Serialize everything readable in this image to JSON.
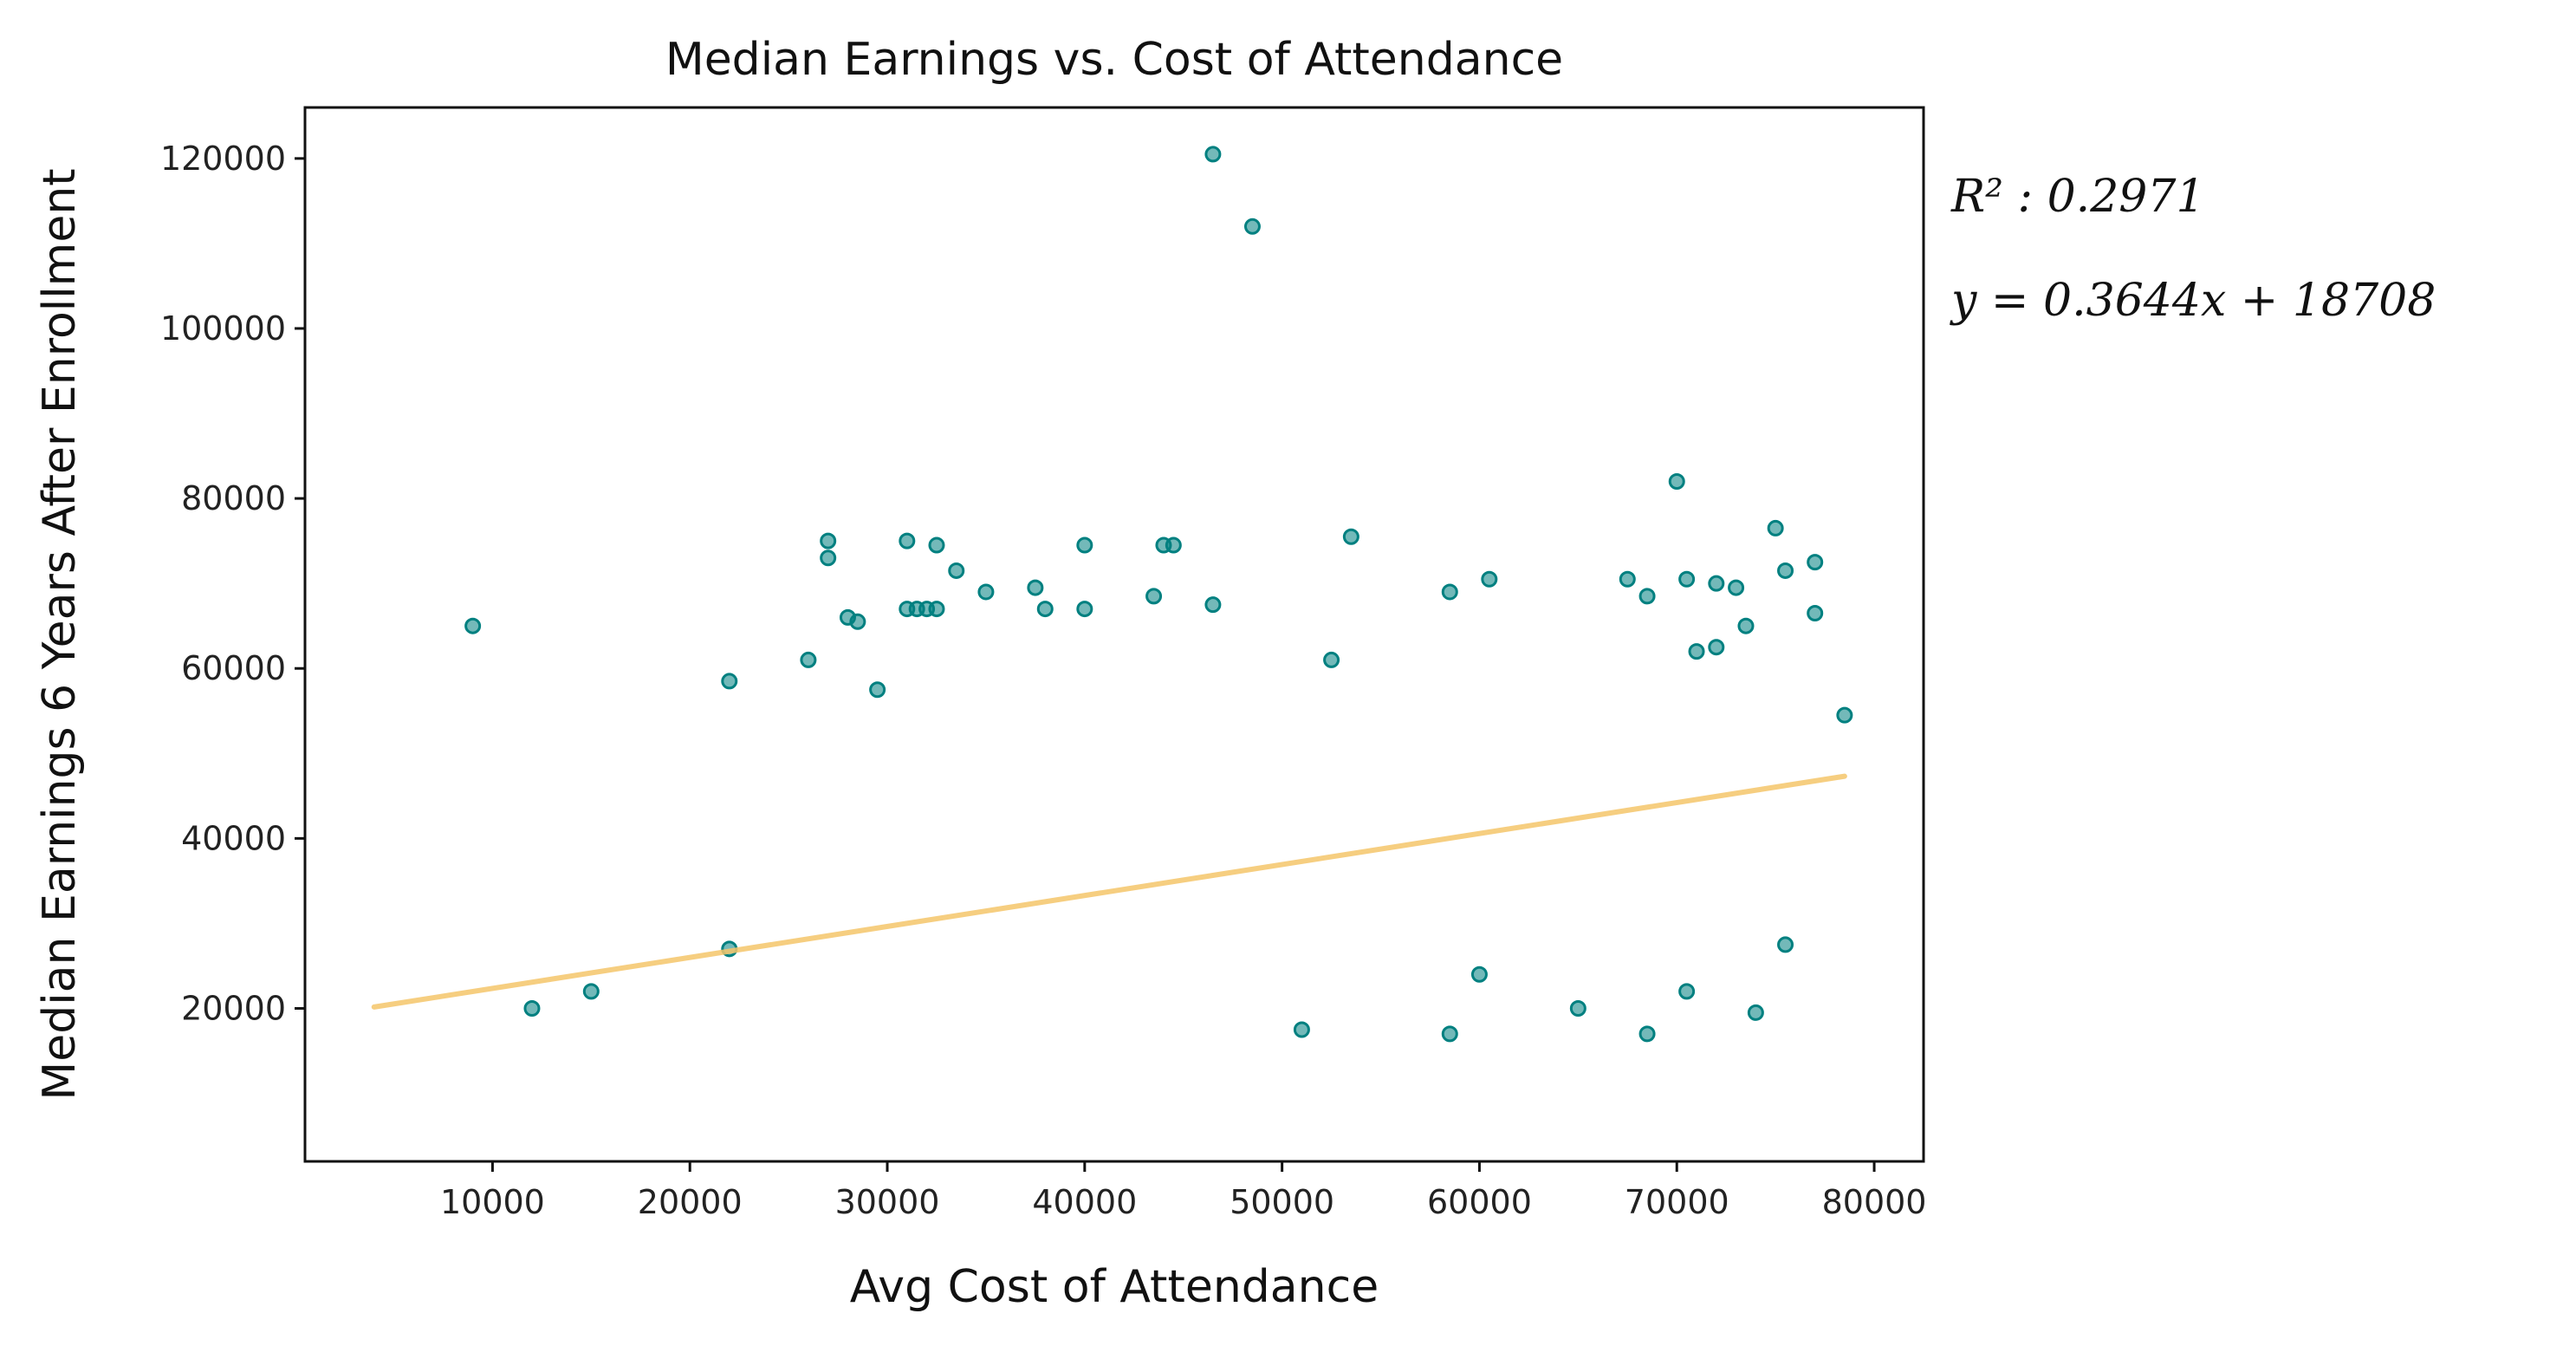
{
  "chart_data": {
    "type": "scatter",
    "title": "Median Earnings vs. Cost of Attendance",
    "xlabel": "Avg Cost of Attendance",
    "ylabel": "Median Earnings 6 Years After Enrollment",
    "xlim": [
      500,
      82500
    ],
    "ylim": [
      2000,
      126000
    ],
    "xticks": [
      10000,
      20000,
      30000,
      40000,
      50000,
      60000,
      70000,
      80000
    ],
    "yticks": [
      20000,
      40000,
      60000,
      80000,
      100000,
      120000
    ],
    "grid": false,
    "point_color": "#008080",
    "line_color": "#F5C66B",
    "annotations": {
      "r2_label": "R² : 0.2971",
      "equation_label": "y = 0.3644x + 18708"
    },
    "regression": {
      "slope": 0.3644,
      "intercept": 18708,
      "x_range": [
        4000,
        78500
      ]
    },
    "series": [
      {
        "values": [
          [
            46500,
            120500
          ],
          [
            48500,
            112000
          ],
          [
            9000,
            65000
          ],
          [
            27000,
            75000
          ],
          [
            31000,
            75000
          ],
          [
            32500,
            74500
          ],
          [
            40000,
            74500
          ],
          [
            44000,
            74500
          ],
          [
            44500,
            74500
          ],
          [
            27000,
            73000
          ],
          [
            33500,
            71500
          ],
          [
            35000,
            69000
          ],
          [
            37500,
            69500
          ],
          [
            43500,
            68500
          ],
          [
            46500,
            67500
          ],
          [
            31000,
            67000
          ],
          [
            31500,
            67000
          ],
          [
            32000,
            67000
          ],
          [
            32500,
            67000
          ],
          [
            38000,
            67000
          ],
          [
            40000,
            67000
          ],
          [
            28000,
            66000
          ],
          [
            28500,
            65500
          ],
          [
            53500,
            75500
          ],
          [
            58500,
            69000
          ],
          [
            60500,
            70500
          ],
          [
            67500,
            70500
          ],
          [
            68500,
            68500
          ],
          [
            70000,
            82000
          ],
          [
            70500,
            70500
          ],
          [
            72000,
            70000
          ],
          [
            73000,
            69500
          ],
          [
            75000,
            76500
          ],
          [
            77000,
            72500
          ],
          [
            75500,
            71500
          ],
          [
            77000,
            66500
          ],
          [
            73500,
            65000
          ],
          [
            72000,
            62500
          ],
          [
            71000,
            62000
          ],
          [
            52500,
            61000
          ],
          [
            26000,
            61000
          ],
          [
            22000,
            58500
          ],
          [
            29500,
            57500
          ],
          [
            78500,
            54500
          ],
          [
            60000,
            24000
          ],
          [
            65000,
            20000
          ],
          [
            68500,
            17000
          ],
          [
            70500,
            22000
          ],
          [
            74000,
            19500
          ],
          [
            75500,
            27500
          ],
          [
            58500,
            17000
          ],
          [
            51000,
            17500
          ],
          [
            22000,
            27000
          ],
          [
            15000,
            22000
          ],
          [
            12000,
            20000
          ]
        ]
      }
    ]
  }
}
